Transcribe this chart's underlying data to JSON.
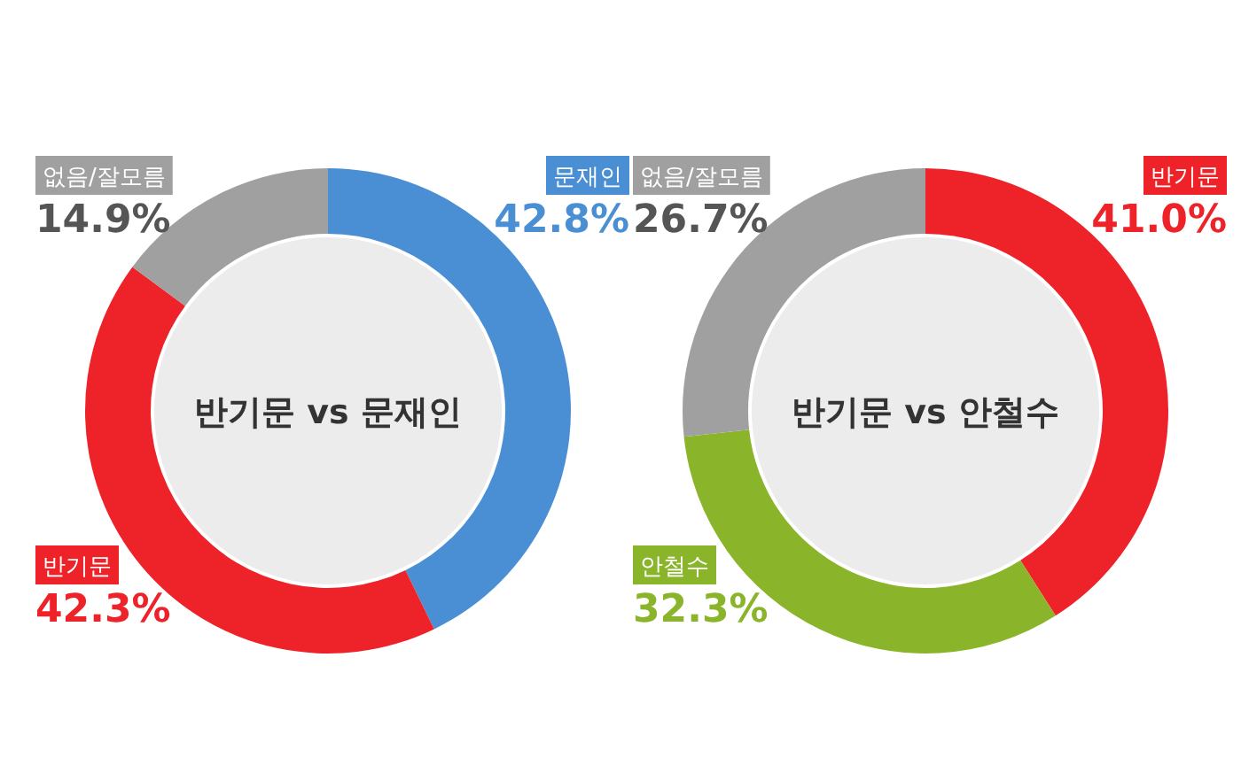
{
  "chart_data": [
    {
      "type": "donut",
      "title": "반기문 vs 문재인",
      "categories": [
        "문재인",
        "반기문",
        "없음/잘모름"
      ],
      "values": [
        42.8,
        42.3,
        14.9
      ],
      "colors": [
        "#4a8fd4",
        "#ee2229",
        "#a0a0a0"
      ],
      "value_labels": [
        "42.8%",
        "42.3%",
        "14.9%"
      ]
    },
    {
      "type": "donut",
      "title": "반기문 vs 안철수",
      "categories": [
        "반기문",
        "안철수",
        "없음/잘모름"
      ],
      "values": [
        41.0,
        32.3,
        26.7
      ],
      "colors": [
        "#ee2229",
        "#8ab52a",
        "#a0a0a0"
      ],
      "value_labels": [
        "41.0%",
        "32.3%",
        "26.7%"
      ]
    }
  ]
}
